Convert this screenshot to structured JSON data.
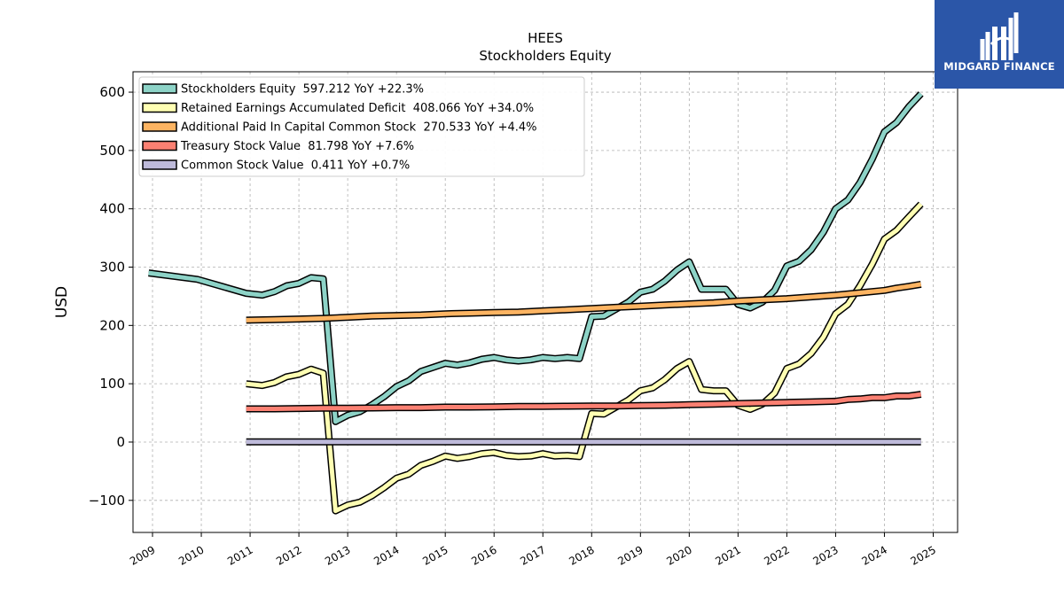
{
  "logo": {
    "brand": "MIDGARD FINANCE"
  },
  "colors": {
    "equity": "#8dd3c7",
    "retained": "#ffffb3",
    "apic": "#fdb462",
    "treasury": "#fb8072",
    "common": "#bebada"
  },
  "chart_data": {
    "type": "line",
    "title": "HEES",
    "subtitle": "Stockholders  Equity",
    "ylabel": "USD",
    "xlabel": "",
    "xlim": [
      2008.6,
      2025.5
    ],
    "ylim": [
      -155,
      635
    ],
    "yticks": [
      -100,
      0,
      100,
      200,
      300,
      400,
      500,
      600
    ],
    "xticks": [
      "2009",
      "2010",
      "2011",
      "2012",
      "2013",
      "2014",
      "2015",
      "2016",
      "2017",
      "2018",
      "2019",
      "2020",
      "2021",
      "2022",
      "2023",
      "2024",
      "2025"
    ],
    "grid": true,
    "legend_position": "top-left",
    "series": [
      {
        "name": "Stockholders Equity  597.212 YoY +22.3%",
        "color_key": "equity",
        "points": [
          [
            2008.92,
            290
          ],
          [
            2009.92,
            279
          ],
          [
            2010.92,
            255
          ],
          [
            2011.25,
            252
          ],
          [
            2011.5,
            258
          ],
          [
            2011.75,
            268
          ],
          [
            2012.0,
            272
          ],
          [
            2012.25,
            282
          ],
          [
            2012.5,
            280
          ],
          [
            2012.75,
            35
          ],
          [
            2013.0,
            46
          ],
          [
            2013.25,
            52
          ],
          [
            2013.5,
            64
          ],
          [
            2013.75,
            78
          ],
          [
            2014.0,
            95
          ],
          [
            2014.25,
            105
          ],
          [
            2014.5,
            121
          ],
          [
            2014.75,
            128
          ],
          [
            2015.0,
            135
          ],
          [
            2015.25,
            132
          ],
          [
            2015.5,
            136
          ],
          [
            2015.75,
            142
          ],
          [
            2016.0,
            145
          ],
          [
            2016.25,
            141
          ],
          [
            2016.5,
            139
          ],
          [
            2016.75,
            141
          ],
          [
            2017.0,
            145
          ],
          [
            2017.25,
            143
          ],
          [
            2017.5,
            145
          ],
          [
            2017.75,
            143
          ],
          [
            2018.0,
            215
          ],
          [
            2018.25,
            216
          ],
          [
            2018.5,
            228
          ],
          [
            2018.75,
            240
          ],
          [
            2019.0,
            257
          ],
          [
            2019.25,
            262
          ],
          [
            2019.5,
            276
          ],
          [
            2019.75,
            295
          ],
          [
            2020.0,
            309
          ],
          [
            2020.25,
            262
          ],
          [
            2020.5,
            262
          ],
          [
            2020.75,
            262
          ],
          [
            2021.0,
            236
          ],
          [
            2021.25,
            230
          ],
          [
            2021.5,
            240
          ],
          [
            2021.75,
            260
          ],
          [
            2022.0,
            302
          ],
          [
            2022.25,
            310
          ],
          [
            2022.5,
            330
          ],
          [
            2022.75,
            360
          ],
          [
            2023.0,
            400
          ],
          [
            2023.25,
            415
          ],
          [
            2023.5,
            445
          ],
          [
            2023.75,
            485
          ],
          [
            2024.0,
            532
          ],
          [
            2024.25,
            548
          ],
          [
            2024.5,
            575
          ],
          [
            2024.75,
            597.212
          ]
        ]
      },
      {
        "name": "Retained Earnings Accumulated Deficit  408.066 YoY +34.0%",
        "color_key": "retained",
        "points": [
          [
            2010.92,
            100
          ],
          [
            2011.25,
            97
          ],
          [
            2011.5,
            102
          ],
          [
            2011.75,
            112
          ],
          [
            2012.0,
            116
          ],
          [
            2012.25,
            125
          ],
          [
            2012.5,
            118
          ],
          [
            2012.75,
            -118
          ],
          [
            2013.0,
            -108
          ],
          [
            2013.25,
            -103
          ],
          [
            2013.5,
            -92
          ],
          [
            2013.75,
            -78
          ],
          [
            2014.0,
            -62
          ],
          [
            2014.25,
            -55
          ],
          [
            2014.5,
            -40
          ],
          [
            2014.75,
            -33
          ],
          [
            2015.0,
            -24
          ],
          [
            2015.25,
            -28
          ],
          [
            2015.5,
            -25
          ],
          [
            2015.75,
            -20
          ],
          [
            2016.0,
            -18
          ],
          [
            2016.25,
            -23
          ],
          [
            2016.5,
            -25
          ],
          [
            2016.75,
            -24
          ],
          [
            2017.0,
            -20
          ],
          [
            2017.25,
            -24
          ],
          [
            2017.5,
            -23
          ],
          [
            2017.75,
            -25
          ],
          [
            2018.0,
            49
          ],
          [
            2018.25,
            48
          ],
          [
            2018.5,
            60
          ],
          [
            2018.75,
            72
          ],
          [
            2019.0,
            88
          ],
          [
            2019.25,
            93
          ],
          [
            2019.5,
            107
          ],
          [
            2019.75,
            126
          ],
          [
            2020.0,
            138
          ],
          [
            2020.25,
            90
          ],
          [
            2020.5,
            88
          ],
          [
            2020.75,
            88
          ],
          [
            2021.0,
            63
          ],
          [
            2021.25,
            56
          ],
          [
            2021.5,
            65
          ],
          [
            2021.75,
            84
          ],
          [
            2022.0,
            126
          ],
          [
            2022.25,
            134
          ],
          [
            2022.5,
            152
          ],
          [
            2022.75,
            180
          ],
          [
            2023.0,
            220
          ],
          [
            2023.25,
            236
          ],
          [
            2023.5,
            268
          ],
          [
            2023.75,
            305
          ],
          [
            2024.0,
            348
          ],
          [
            2024.25,
            363
          ],
          [
            2024.5,
            386
          ],
          [
            2024.75,
            408.066
          ]
        ]
      },
      {
        "name": "Additional Paid In Capital Common Stock  270.533 YoY +4.4%",
        "color_key": "apic",
        "points": [
          [
            2010.92,
            209
          ],
          [
            2011.5,
            210
          ],
          [
            2012.0,
            211
          ],
          [
            2012.5,
            212
          ],
          [
            2013.0,
            214
          ],
          [
            2013.5,
            216
          ],
          [
            2014.0,
            217
          ],
          [
            2014.5,
            218
          ],
          [
            2015.0,
            220
          ],
          [
            2015.5,
            221
          ],
          [
            2016.0,
            222
          ],
          [
            2016.5,
            223
          ],
          [
            2017.0,
            225
          ],
          [
            2017.5,
            227
          ],
          [
            2018.0,
            229
          ],
          [
            2018.5,
            231
          ],
          [
            2019.0,
            233
          ],
          [
            2019.5,
            235
          ],
          [
            2020.0,
            237
          ],
          [
            2020.5,
            239
          ],
          [
            2021.0,
            242
          ],
          [
            2021.5,
            244
          ],
          [
            2022.0,
            246
          ],
          [
            2022.5,
            249
          ],
          [
            2023.0,
            252
          ],
          [
            2023.5,
            256
          ],
          [
            2024.0,
            260
          ],
          [
            2024.25,
            264
          ],
          [
            2024.5,
            267
          ],
          [
            2024.75,
            270.533
          ]
        ]
      },
      {
        "name": "Treasury Stock Value  81.798 YoY +7.6%",
        "color_key": "treasury",
        "points": [
          [
            2010.92,
            57
          ],
          [
            2011.5,
            57
          ],
          [
            2012.0,
            57.5
          ],
          [
            2012.5,
            58
          ],
          [
            2013.0,
            58
          ],
          [
            2013.5,
            58.5
          ],
          [
            2014.0,
            59
          ],
          [
            2014.5,
            59
          ],
          [
            2015.0,
            60
          ],
          [
            2015.5,
            60
          ],
          [
            2016.0,
            60.5
          ],
          [
            2016.5,
            61
          ],
          [
            2017.0,
            61
          ],
          [
            2017.5,
            61.5
          ],
          [
            2018.0,
            62
          ],
          [
            2018.5,
            62
          ],
          [
            2019.0,
            62.5
          ],
          [
            2019.5,
            63
          ],
          [
            2020.0,
            64
          ],
          [
            2020.5,
            65
          ],
          [
            2021.0,
            66
          ],
          [
            2021.5,
            67
          ],
          [
            2022.0,
            68
          ],
          [
            2022.5,
            69
          ],
          [
            2023.0,
            70
          ],
          [
            2023.25,
            73
          ],
          [
            2023.5,
            74
          ],
          [
            2023.75,
            76
          ],
          [
            2024.0,
            76
          ],
          [
            2024.25,
            79
          ],
          [
            2024.5,
            79
          ],
          [
            2024.75,
            81.798
          ]
        ]
      },
      {
        "name": "Common Stock Value  0.411 YoY +0.7%",
        "color_key": "common",
        "points": [
          [
            2010.92,
            0.35
          ],
          [
            2024.75,
            0.411
          ]
        ]
      }
    ]
  }
}
